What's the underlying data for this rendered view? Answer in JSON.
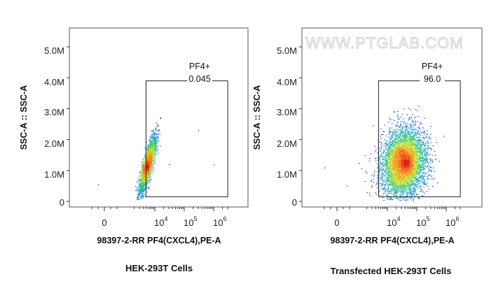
{
  "watermark": "WWW.PTGLAB.COM",
  "chart_data": [
    {
      "type": "scatter",
      "subtype": "flow-cytometry-density-plot",
      "xlabel": "98397-2-RR PF4(CXCL4),PE-A",
      "ylabel": "SSC-A :: SSC-A",
      "caption": "HEK-293T Cells",
      "y_ticks": [
        "0",
        "1.0M",
        "2.0M",
        "3.0M",
        "4.0M",
        "5.0M"
      ],
      "x_ticks": [
        {
          "base": "0",
          "exp": ""
        },
        {
          "base": "10",
          "exp": "4"
        },
        {
          "base": "10",
          "exp": "5"
        },
        {
          "base": "10",
          "exp": "6"
        }
      ],
      "x_scale": "biexponential",
      "ylim": [
        0,
        5600000
      ],
      "gate": {
        "name": "PF4+",
        "value": "0.045",
        "x_range": [
          5000,
          3000000
        ],
        "y_range": [
          150000,
          3900000
        ]
      },
      "population": {
        "n": 2600,
        "x_center_log10": 3.75,
        "x_spread_log10": 0.14,
        "y_center": 1200000,
        "y_spread": 450000,
        "corr": 0.82
      },
      "outliers": [
        [
          300000,
          2300000
        ],
        [
          30000,
          1200000
        ],
        [
          1000000,
          1200000
        ],
        [
          -500,
          550000
        ]
      ]
    },
    {
      "type": "scatter",
      "subtype": "flow-cytometry-density-plot",
      "xlabel": "98397-2-RR PF4(CXCL4),PE-A",
      "ylabel": "SSC-A :: SSC-A",
      "caption": "Transfected HEK-293T Cells",
      "y_ticks": [
        "0",
        "1.0M",
        "2.0M",
        "3.0M",
        "4.0M",
        "5.0M"
      ],
      "x_ticks": [
        {
          "base": "0",
          "exp": ""
        },
        {
          "base": "10",
          "exp": "4"
        },
        {
          "base": "10",
          "exp": "5"
        },
        {
          "base": "10",
          "exp": "6"
        }
      ],
      "x_scale": "biexponential",
      "ylim": [
        0,
        5600000
      ],
      "gate": {
        "name": "PF4+",
        "value": "96.0",
        "x_range": [
          5000,
          3000000
        ],
        "y_range": [
          150000,
          3900000
        ]
      },
      "population": {
        "n": 5200,
        "x_center_log10": 4.55,
        "x_spread_log10": 0.38,
        "y_center": 1250000,
        "y_spread": 550000,
        "corr": 0.1
      },
      "outliers": [
        [
          -1000,
          1100000
        ],
        [
          2000,
          300000
        ]
      ]
    }
  ]
}
